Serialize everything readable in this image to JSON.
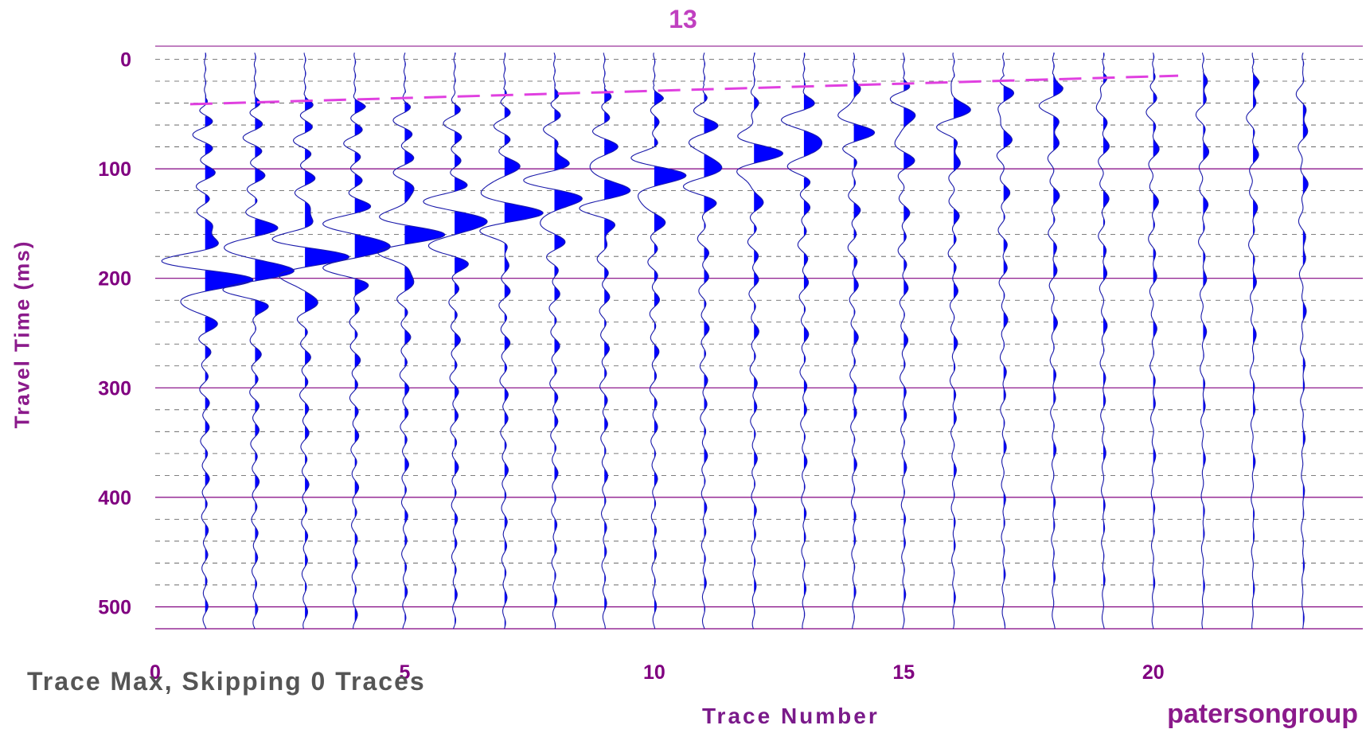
{
  "chart_data": {
    "type": "seismic wiggle-trace plot",
    "title": "13",
    "xlabel": "Trace Number",
    "ylabel": "Travel Time (ms)",
    "xlim": [
      0,
      24.2
    ],
    "ylim": [
      520,
      -12
    ],
    "y_inverted": true,
    "x_ticks": [
      0,
      5,
      10,
      15,
      20
    ],
    "y_ticks": [
      0,
      100,
      200,
      300,
      400,
      500
    ],
    "major_grid_ms": [
      0,
      100,
      200,
      300,
      400,
      500
    ],
    "minor_grid_ms": [
      20,
      40,
      60,
      80,
      120,
      140,
      160,
      180,
      220,
      240,
      260,
      280,
      320,
      340,
      360,
      380,
      420,
      440,
      460,
      480
    ],
    "trace_positions": [
      1,
      2,
      3,
      4,
      5,
      6,
      7,
      8,
      9,
      10,
      11,
      12,
      13,
      14,
      15,
      16,
      17,
      18,
      19,
      20,
      21,
      22,
      23
    ],
    "first_break_pick": {
      "x": [
        0.7,
        20.5
      ],
      "y": [
        41,
        15
      ]
    },
    "colors": {
      "trace_fill": "#0000ff",
      "trace_line": "#1a1aaa",
      "pick_line": "#e040e0",
      "grid": "#800080",
      "title": "#c040c0",
      "tick_label": "#800080"
    }
  },
  "footer": {
    "normalization": "Trace Max, Skipping 0 Traces",
    "company": "patersongroup"
  }
}
